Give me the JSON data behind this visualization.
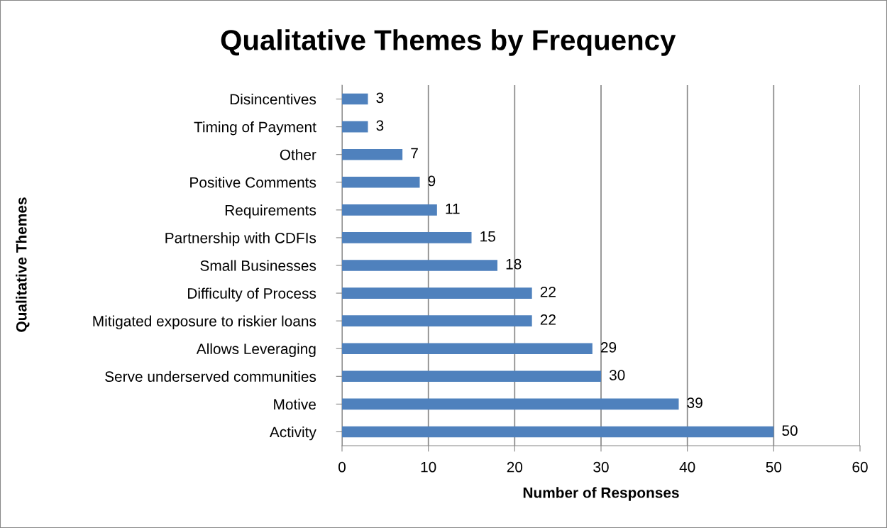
{
  "chart_data": {
    "type": "bar",
    "orientation": "horizontal",
    "title": "Qualitative Themes by Frequency",
    "xlabel": "Number of Responses",
    "ylabel": "Qualitative Themes",
    "categories": [
      "Disincentives",
      "Timing of Payment",
      "Other",
      "Positive Comments",
      "Requirements",
      "Partnership with CDFIs",
      "Small Businesses",
      "Difficulty of Process",
      "Mitigated exposure to riskier loans",
      "Allows Leveraging",
      "Serve underserved communities",
      "Motive",
      "Activity"
    ],
    "values": [
      3,
      3,
      7,
      9,
      11,
      15,
      18,
      22,
      22,
      29,
      30,
      39,
      50
    ],
    "color": "#4f81bd",
    "xlim": [
      0,
      60
    ],
    "xticks": [
      0,
      10,
      20,
      30,
      40,
      50,
      60
    ],
    "grid": "x",
    "data_labels": true
  }
}
